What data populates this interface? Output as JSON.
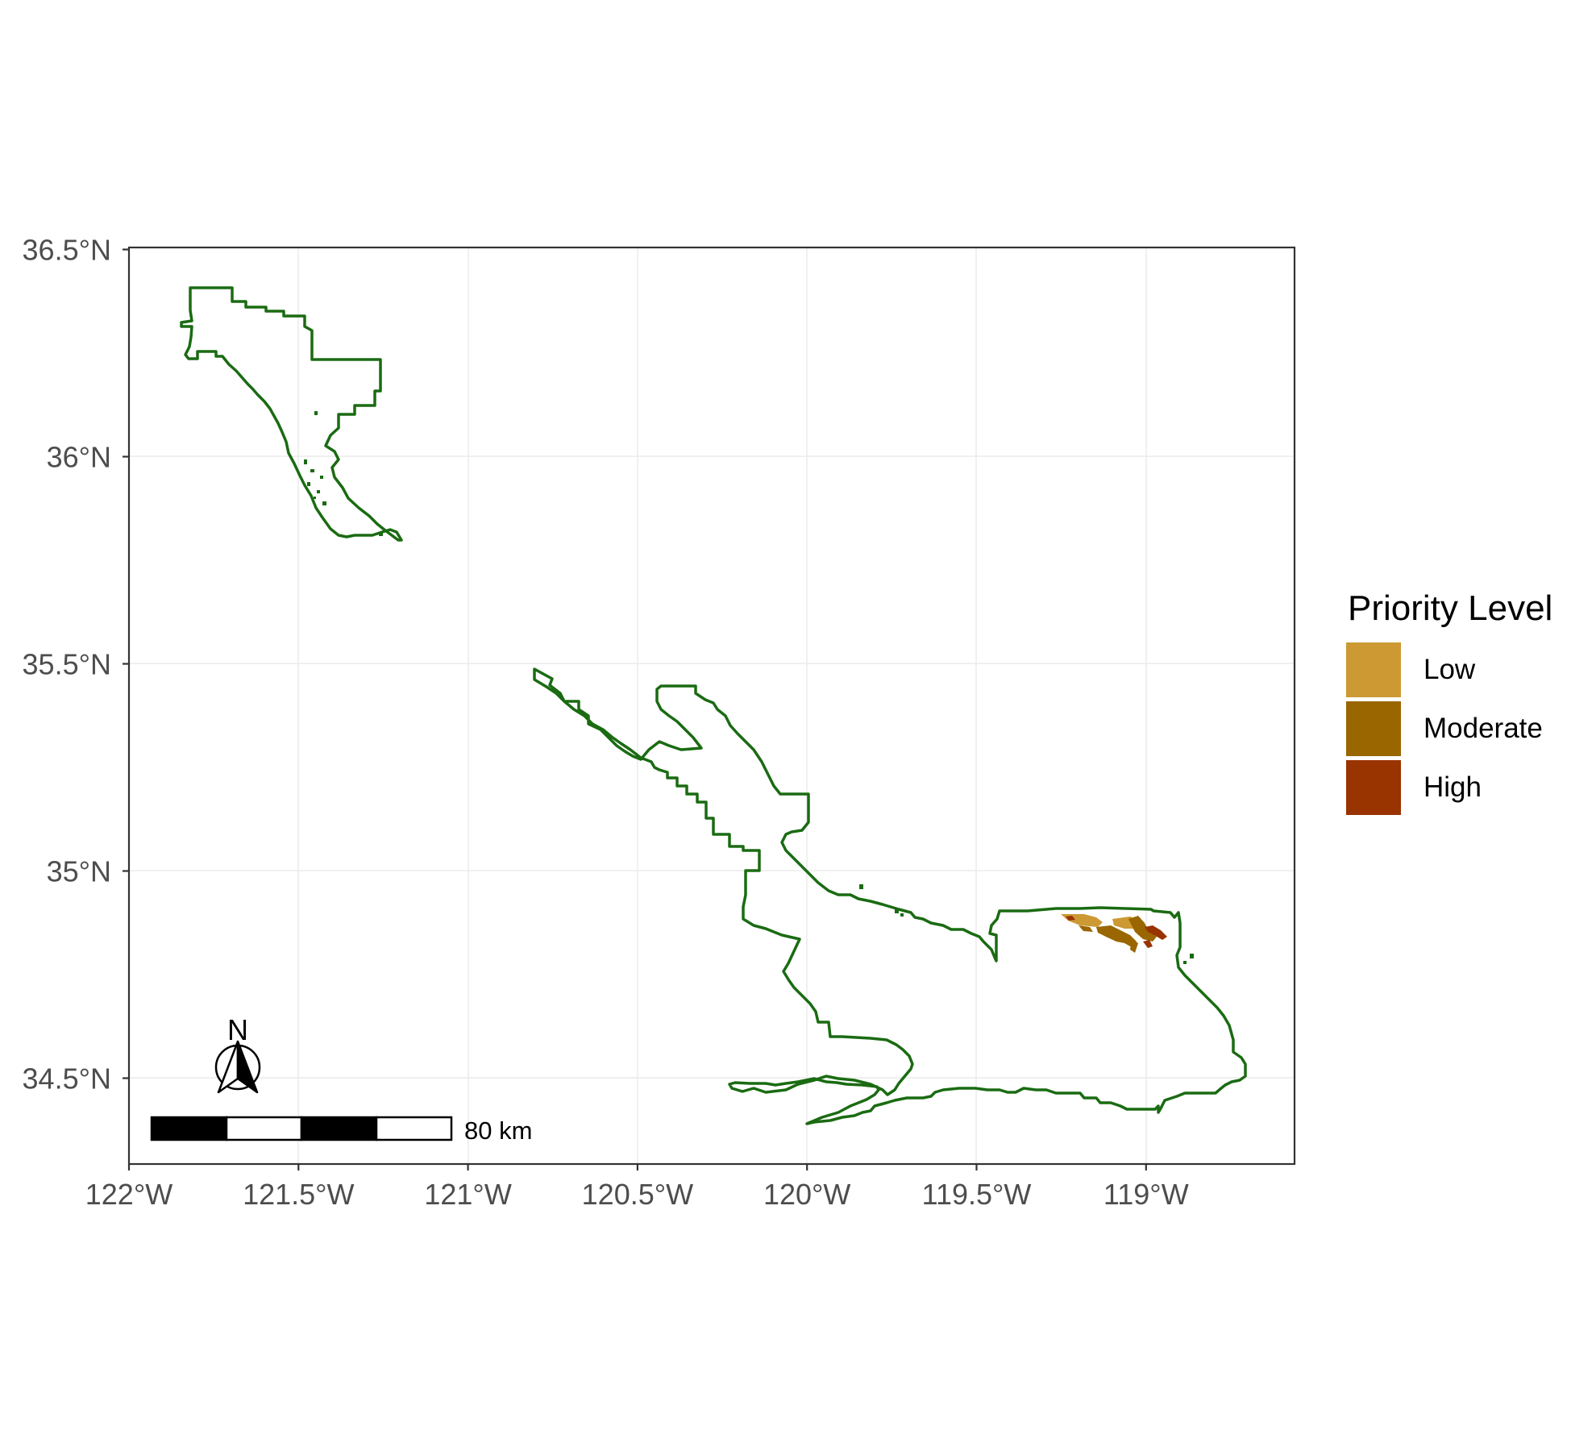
{
  "map": {
    "x_axis": {
      "ticks": [
        {
          "value": -122.0,
          "label": "122°W"
        },
        {
          "value": -121.5,
          "label": "121.5°W"
        },
        {
          "value": -121.0,
          "label": "121°W"
        },
        {
          "value": -120.5,
          "label": "120.5°W"
        },
        {
          "value": -120.0,
          "label": "120°W"
        },
        {
          "value": -119.5,
          "label": "119.5°W"
        },
        {
          "value": -119.0,
          "label": "119°W"
        }
      ]
    },
    "y_axis": {
      "ticks": [
        {
          "value": 36.5,
          "label": "36.5°N"
        },
        {
          "value": 36.0,
          "label": "36°N"
        },
        {
          "value": 35.5,
          "label": "35.5°N"
        },
        {
          "value": 35.0,
          "label": "35°N"
        },
        {
          "value": 34.5,
          "label": "34.5°N"
        }
      ]
    },
    "boundary_color": "#1a6b12",
    "grid": true
  },
  "legend": {
    "title": "Priority Level",
    "items": [
      {
        "label": "Low",
        "color": "#cc9933"
      },
      {
        "label": "Moderate",
        "color": "#996600"
      },
      {
        "label": "High",
        "color": "#993300"
      }
    ]
  },
  "scale_bar": {
    "label": "80 km"
  },
  "north_arrow": {
    "label": "N"
  }
}
